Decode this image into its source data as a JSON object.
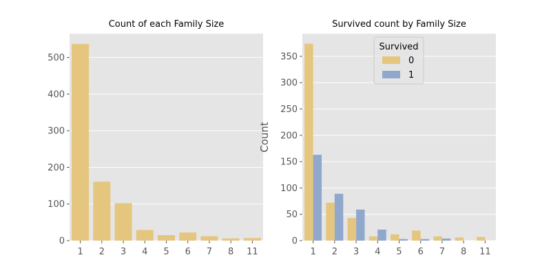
{
  "chart_data": [
    {
      "type": "bar",
      "title": "Count of each Family Size",
      "xlabel": "",
      "ylabel": "",
      "categories": [
        "1",
        "2",
        "3",
        "4",
        "5",
        "6",
        "7",
        "8",
        "11"
      ],
      "series": [
        {
          "values": [
            537,
            161,
            102,
            29,
            15,
            22,
            12,
            6,
            7
          ],
          "color": "#e5c67e"
        }
      ],
      "ylim": [
        0,
        565
      ],
      "yticks": [
        0,
        100,
        200,
        300,
        400,
        500
      ],
      "grid": true
    },
    {
      "type": "bar",
      "title": "Survived count by Family Size",
      "xlabel": "",
      "ylabel": "Count",
      "categories": [
        "1",
        "2",
        "3",
        "4",
        "5",
        "6",
        "7",
        "8",
        "11"
      ],
      "series": [
        {
          "name": "0",
          "values": [
            374,
            72,
            43,
            8,
            12,
            19,
            8,
            6,
            7
          ],
          "color": "#e5c67e"
        },
        {
          "name": "1",
          "values": [
            163,
            89,
            59,
            21,
            3,
            3,
            4,
            0,
            0
          ],
          "color": "#90a8cc"
        }
      ],
      "ylim": [
        0,
        393
      ],
      "yticks": [
        0,
        50,
        100,
        150,
        200,
        250,
        300,
        350
      ],
      "grid": true,
      "legend": {
        "title": "Survived",
        "placement": "top-center"
      }
    }
  ],
  "colors": {
    "plot_background": "#e5e5e5",
    "grid": "#ffffff",
    "tick_text": "#555555"
  }
}
